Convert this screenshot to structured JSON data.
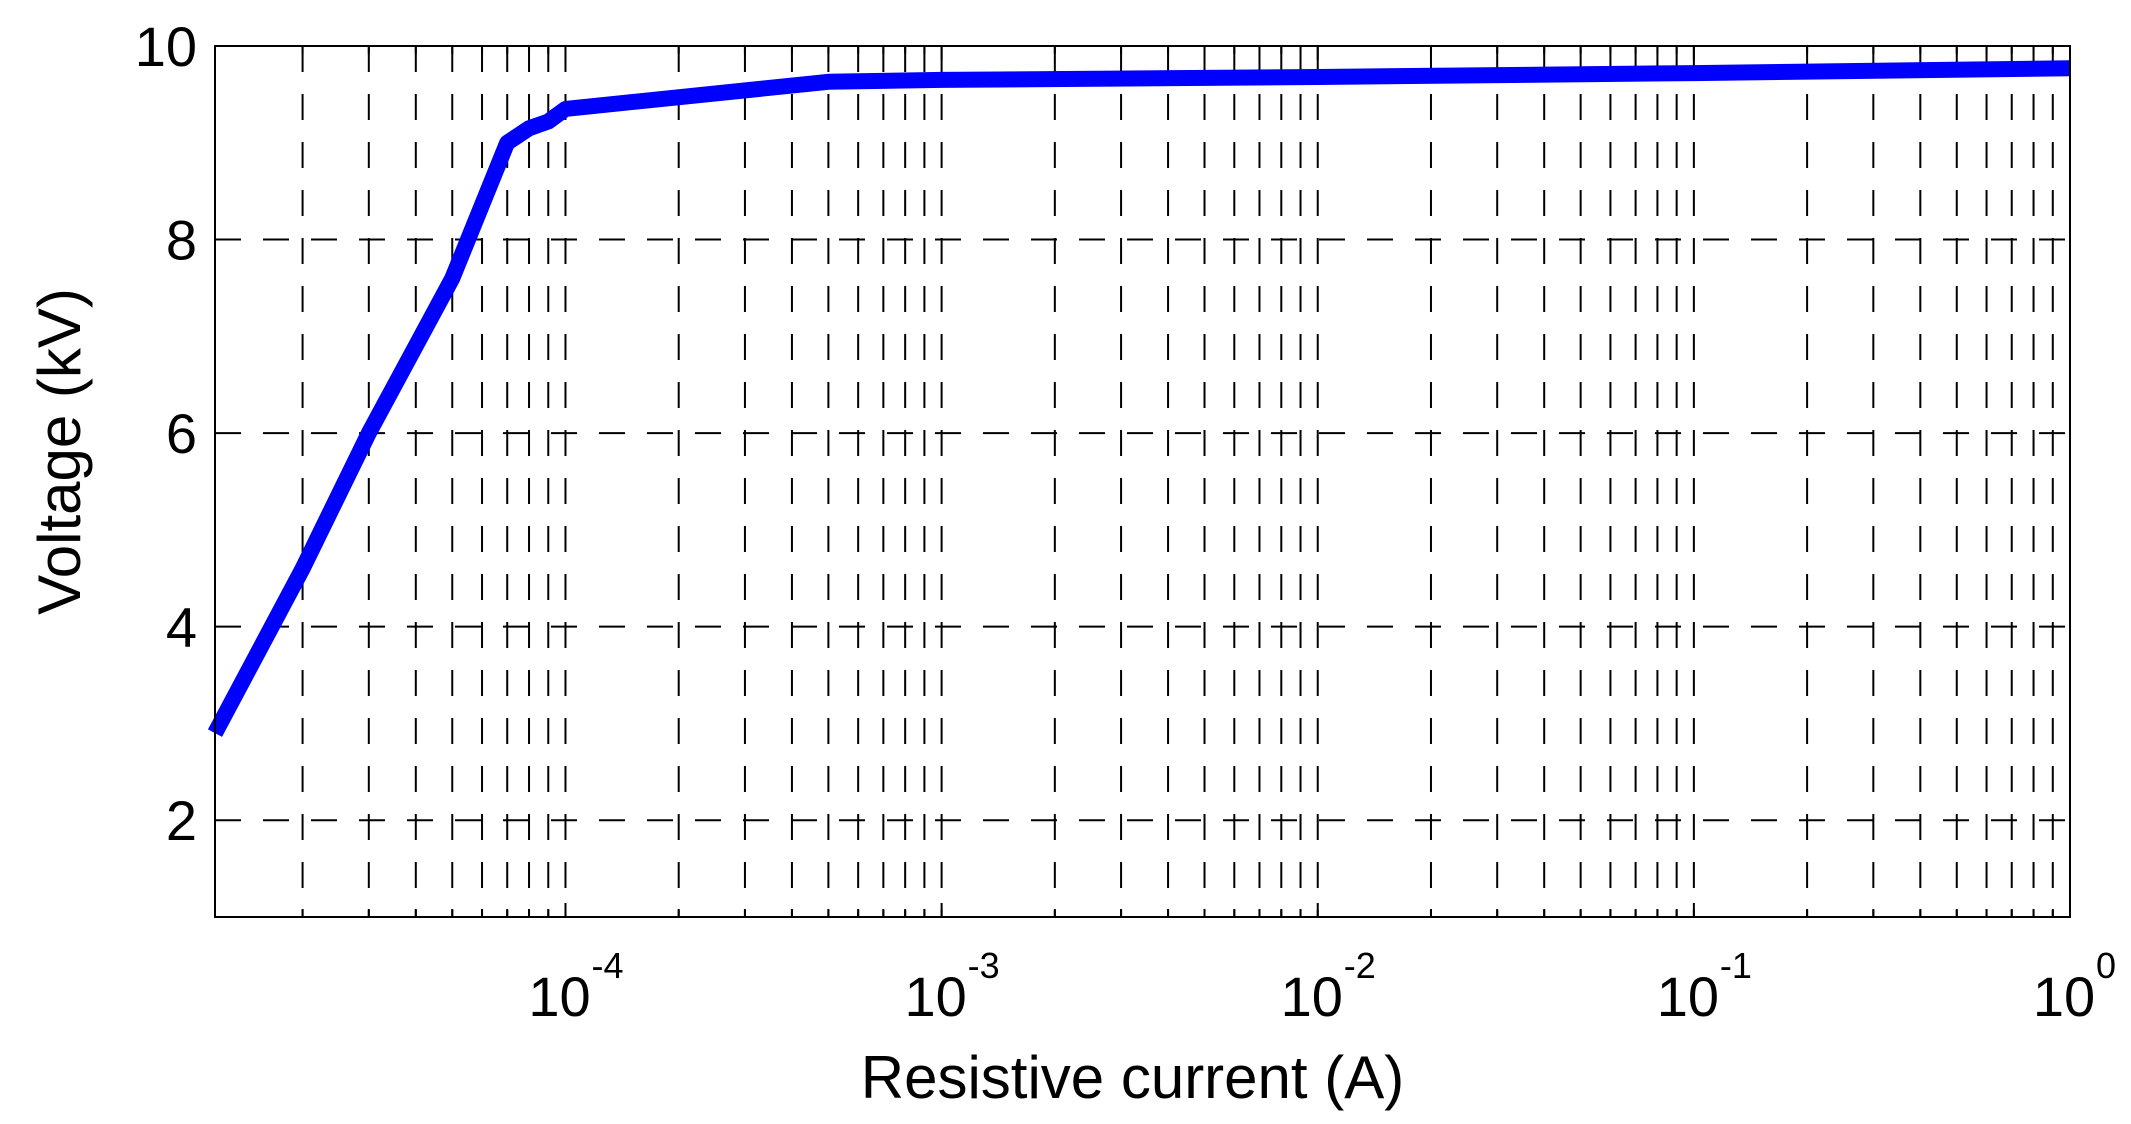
{
  "chart_data": {
    "type": "line",
    "xlabel": "Resistive current (A)",
    "ylabel": "Voltage (kV)",
    "xscale": "log",
    "xlim": [
      1.17e-05,
      1
    ],
    "ylim": [
      1,
      10
    ],
    "grid": true,
    "grid_style": "dashed",
    "x_ticks": [
      {
        "value": 0.0001,
        "base": "10",
        "exp": "-4"
      },
      {
        "value": 0.001,
        "base": "10",
        "exp": "-3"
      },
      {
        "value": 0.01,
        "base": "10",
        "exp": "-2"
      },
      {
        "value": 0.1,
        "base": "10",
        "exp": "-1"
      },
      {
        "value": 1,
        "base": "10",
        "exp": "0"
      }
    ],
    "y_ticks": [
      {
        "value": 2,
        "label": "2"
      },
      {
        "value": 4,
        "label": "4"
      },
      {
        "value": 6,
        "label": "6"
      },
      {
        "value": 8,
        "label": "8"
      },
      {
        "value": 10,
        "label": "10"
      }
    ],
    "series": [
      {
        "color": "#0000ff",
        "x": [
          1.17e-05,
          2e-05,
          3e-05,
          5e-05,
          7e-05,
          8e-05,
          9e-05,
          0.0001,
          0.0005,
          0.001,
          0.01,
          0.1,
          1
        ],
        "y": [
          2.9,
          4.6,
          6.0,
          7.6,
          9.0,
          9.15,
          9.22,
          9.35,
          9.63,
          9.65,
          9.68,
          9.72,
          9.77
        ]
      }
    ]
  }
}
